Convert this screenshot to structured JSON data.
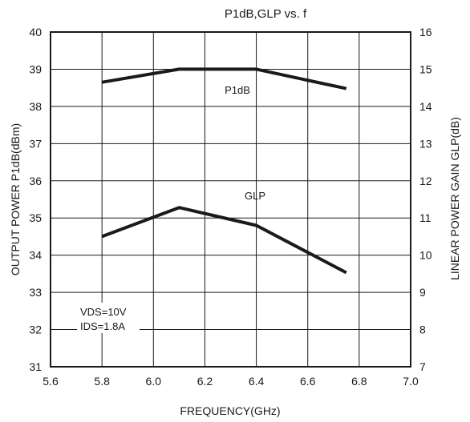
{
  "chart_data": {
    "type": "line",
    "title": "P1dB,GLP vs. f",
    "xlabel": "FREQUENCY(GHz)",
    "ylabel_left": "OUTPUT POWER P1dB(dBm)",
    "ylabel_right": "LINEAR POWER GAIN GLP(dB)",
    "xlim": [
      5.6,
      7.0
    ],
    "ylim_left": [
      31,
      40
    ],
    "ylim_right": [
      7,
      16
    ],
    "x_ticks": [
      "5.6",
      "5.8",
      "6.0",
      "6.2",
      "6.4",
      "6.6",
      "6.8",
      "7.0"
    ],
    "y_left_ticks": [
      "31",
      "32",
      "33",
      "34",
      "35",
      "36",
      "37",
      "38",
      "39",
      "40"
    ],
    "y_right_ticks": [
      "7",
      "8",
      "9",
      "10",
      "11",
      "12",
      "13",
      "14",
      "15",
      "16"
    ],
    "grid": true,
    "series": [
      {
        "name": "P1dB",
        "axis": "left",
        "x": [
          5.8,
          6.1,
          6.4,
          6.75
        ],
        "values": [
          38.65,
          39.0,
          39.0,
          38.48
        ]
      },
      {
        "name": "GLP",
        "axis": "right",
        "x": [
          5.8,
          6.1,
          6.4,
          6.75
        ],
        "values": [
          10.5,
          11.28,
          10.8,
          9.53
        ]
      }
    ],
    "annotations": [
      "VDS=10V",
      "IDS=1.8A"
    ],
    "line_color": "#1a1a1a",
    "grid_color": "#1a1a1a"
  }
}
